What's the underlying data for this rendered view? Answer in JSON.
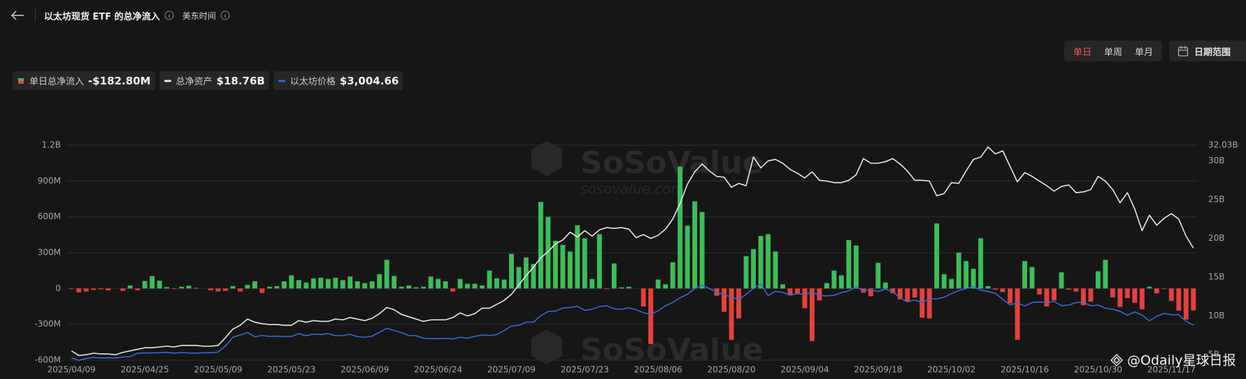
{
  "header": {
    "title": "以太坊现货 ETF 的总净流入",
    "timezone": "美东时间"
  },
  "controls": {
    "periods": [
      "单日",
      "单周",
      "单月"
    ],
    "active": 0,
    "date_range": "日期范围"
  },
  "watermark": {
    "brand": "SoSoValue",
    "url": "sosovalue.com"
  },
  "credit": "@Odaily星球日报",
  "chart_data": {
    "type": "combo",
    "categories": [
      "2025/04/09",
      null,
      null,
      null,
      null,
      null,
      null,
      null,
      null,
      null,
      "2025/04/25",
      null,
      null,
      null,
      null,
      null,
      null,
      null,
      null,
      null,
      "2025/05/09",
      null,
      null,
      null,
      null,
      null,
      null,
      null,
      null,
      null,
      "2025/05/23",
      null,
      null,
      null,
      null,
      null,
      null,
      null,
      null,
      null,
      "2025/06/09",
      null,
      null,
      null,
      null,
      null,
      null,
      null,
      null,
      null,
      "2025/06/24",
      null,
      null,
      null,
      null,
      null,
      null,
      null,
      null,
      null,
      "2025/07/09",
      null,
      null,
      null,
      null,
      null,
      null,
      null,
      null,
      null,
      "2025/07/23",
      null,
      null,
      null,
      null,
      null,
      null,
      null,
      null,
      null,
      "2025/08/06",
      null,
      null,
      null,
      null,
      null,
      null,
      null,
      null,
      null,
      "2025/08/20",
      null,
      null,
      null,
      null,
      null,
      null,
      null,
      null,
      null,
      "2025/09/04",
      null,
      null,
      null,
      null,
      null,
      null,
      null,
      null,
      null,
      "2025/09/18",
      null,
      null,
      null,
      null,
      null,
      null,
      null,
      null,
      null,
      "2025/10/02",
      null,
      null,
      null,
      null,
      null,
      null,
      null,
      null,
      null,
      "2025/10/16",
      null,
      null,
      null,
      null,
      null,
      null,
      null,
      null,
      null,
      "2025/10/30",
      null,
      null,
      null,
      null,
      null,
      null,
      null,
      null,
      null,
      "2025/11/17",
      null,
      null,
      null
    ],
    "series": [
      {
        "name": "单日总净流入",
        "type": "bar",
        "color": "#3dbd58",
        "negative_color": "#e5403d",
        "latest": "-$182.80M",
        "values": [
          -5,
          -32,
          -25,
          -12,
          -8,
          -16,
          0,
          -20,
          25,
          -15,
          63,
          104,
          65,
          12,
          -5,
          15,
          24,
          5,
          0,
          -15,
          -25,
          -20,
          20,
          -25,
          30,
          60,
          -38,
          15,
          20,
          60,
          110,
          70,
          50,
          85,
          90,
          80,
          90,
          70,
          100,
          60,
          45,
          60,
          120,
          240,
          105,
          15,
          25,
          10,
          15,
          100,
          80,
          60,
          -25,
          80,
          40,
          40,
          25,
          150,
          85,
          75,
          290,
          180,
          260,
          205,
          725,
          600,
          400,
          365,
          310,
          530,
          420,
          80,
          455,
          -5,
          210,
          10,
          15,
          0,
          -150,
          -465,
          75,
          35,
          220,
          1020,
          525,
          730,
          640,
          0,
          -60,
          -195,
          -430,
          -250,
          270,
          330,
          440,
          455,
          310,
          35,
          -50,
          -40,
          -165,
          -440,
          -100,
          45,
          150,
          110,
          405,
          360,
          -35,
          -65,
          215,
          50,
          -40,
          -90,
          -110,
          -75,
          -245,
          -250,
          545,
          120,
          80,
          300,
          230,
          165,
          420,
          20,
          -10,
          -30,
          -125,
          -430,
          230,
          180,
          -50,
          -150,
          -100,
          135,
          -10,
          -25,
          -140,
          -110,
          145,
          240,
          -75,
          -155,
          -80,
          -120,
          -175,
          15,
          -40,
          -5,
          -105,
          -185,
          -260,
          -182.8
        ]
      },
      {
        "name": "总净资产",
        "type": "line",
        "axis": "y2",
        "color": "#e8e8e8",
        "latest": "$18.76B",
        "values": [
          5.5,
          4.9,
          5.0,
          5.2,
          5.1,
          5.1,
          5.0,
          5.3,
          5.5,
          5.7,
          5.9,
          5.9,
          6.0,
          6.1,
          6.0,
          6.2,
          6.2,
          6.2,
          6.1,
          6.1,
          6.2,
          7.2,
          8.3,
          8.8,
          9.6,
          9.2,
          9.0,
          8.9,
          8.9,
          8.8,
          8.8,
          9.4,
          9.2,
          9.4,
          9.3,
          9.3,
          9.6,
          9.5,
          9.8,
          9.6,
          9.4,
          9.7,
          10.3,
          11.1,
          10.8,
          10.2,
          9.9,
          9.6,
          9.3,
          9.5,
          9.5,
          9.5,
          9.8,
          10.4,
          10.0,
          10.3,
          11.0,
          11.0,
          11.5,
          12.0,
          12.8,
          14.0,
          15.2,
          16.3,
          17.5,
          18.3,
          19.3,
          19.8,
          20.8,
          20.2,
          21.0,
          20.3,
          21.1,
          21.4,
          21.3,
          21.4,
          21.2,
          20.1,
          20.5,
          20.0,
          20.4,
          21.2,
          22.5,
          24.5,
          27.0,
          28.6,
          29.6,
          28.7,
          28.0,
          27.9,
          26.6,
          27.1,
          26.8,
          30.5,
          29.1,
          30.0,
          30.2,
          29.7,
          28.9,
          28.4,
          27.8,
          28.6,
          27.5,
          27.4,
          27.2,
          27.2,
          27.5,
          28.2,
          30.3,
          29.7,
          29.7,
          29.9,
          30.3,
          29.6,
          28.7,
          27.5,
          27.5,
          27.4,
          25.5,
          25.8,
          27.2,
          27.1,
          28.7,
          30.2,
          30.5,
          31.8,
          30.9,
          31.3,
          29.3,
          27.3,
          28.5,
          28.0,
          27.4,
          26.8,
          26.1,
          26.7,
          26.9,
          25.9,
          26.0,
          26.3,
          28.0,
          27.4,
          26.3,
          24.6,
          25.9,
          23.8,
          21.0,
          23.0,
          21.7,
          22.6,
          23.2,
          22.5,
          20.3,
          18.76
        ]
      },
      {
        "name": "以太坊价格",
        "type": "line",
        "axis": "y3",
        "color": "#3a6ad6",
        "latest": "$3,004.66",
        "values": [
          1590,
          1480,
          1560,
          1600,
          1580,
          1590,
          1580,
          1620,
          1640,
          1790,
          1800,
          1800,
          1810,
          1830,
          1790,
          1820,
          1800,
          1790,
          1810,
          1810,
          1840,
          2100,
          2480,
          2580,
          2690,
          2500,
          2560,
          2520,
          2530,
          2510,
          2520,
          2640,
          2550,
          2620,
          2600,
          2640,
          2550,
          2560,
          2610,
          2510,
          2480,
          2530,
          2700,
          2870,
          2780,
          2680,
          2560,
          2550,
          2440,
          2420,
          2420,
          2430,
          2410,
          2480,
          2440,
          2520,
          2580,
          2560,
          2600,
          2770,
          2970,
          3000,
          3140,
          3140,
          3420,
          3600,
          3620,
          3750,
          3780,
          3830,
          3650,
          3700,
          3820,
          3850,
          3720,
          3700,
          3760,
          3680,
          3550,
          3480,
          3630,
          3850,
          4000,
          4200,
          4350,
          4600,
          4750,
          4600,
          4450,
          4330,
          4230,
          4120,
          4350,
          4600,
          4800,
          4300,
          4480,
          4430,
          4310,
          4380,
          4340,
          4450,
          4300,
          4280,
          4310,
          4420,
          4500,
          4680,
          4510,
          4540,
          4470,
          4580,
          4460,
          4200,
          4020,
          4100,
          3990,
          4150,
          4150,
          4220,
          4380,
          4510,
          4600,
          4690,
          4530,
          4470,
          4390,
          4130,
          3880,
          3980,
          3840,
          3990,
          4020,
          3990,
          4040,
          3860,
          3880,
          3990,
          4010,
          3850,
          3880,
          3750,
          3700,
          3610,
          3440,
          3580,
          3450,
          3200,
          3390,
          3520,
          3460,
          3460,
          3180,
          3004.66
        ]
      }
    ],
    "ylim": [
      -600,
      1200
    ],
    "yticks": [
      {
        "value": -600,
        "label": "-600M"
      },
      {
        "value": -300,
        "label": "-300M"
      },
      0,
      {
        "value": 300,
        "label": "300M"
      },
      {
        "value": 600,
        "label": "600M"
      },
      {
        "value": 900,
        "label": "900M"
      },
      {
        "value": 1200,
        "label": "1.2B"
      }
    ],
    "y2lim": [
      4.3,
      32.03
    ],
    "y2ticks": [
      {
        "value": 5,
        "label": "5B"
      },
      {
        "value": 10,
        "label": "10B"
      },
      {
        "value": 15,
        "label": "15B"
      },
      {
        "value": 20,
        "label": "20B"
      },
      {
        "value": 25,
        "label": "25B"
      },
      {
        "value": 30,
        "label": "30B"
      },
      {
        "value": 32.03,
        "label": "32.03B"
      }
    ],
    "y3lim": [
      1486,
      10835
    ],
    "grid": true
  }
}
